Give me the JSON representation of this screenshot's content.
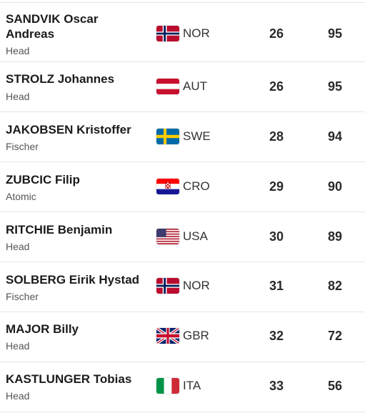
{
  "athletes": [
    {
      "name": "SANDVIK Oscar Andreas",
      "brand": "Head",
      "country": "NOR",
      "flag": "norway-flag-icon",
      "value1": "26",
      "value2": "95"
    },
    {
      "name": "STROLZ Johannes",
      "brand": "Head",
      "country": "AUT",
      "flag": "austria-flag-icon",
      "value1": "26",
      "value2": "95"
    },
    {
      "name": "JAKOBSEN Kristoffer",
      "brand": "Fischer",
      "country": "SWE",
      "flag": "sweden-flag-icon",
      "value1": "28",
      "value2": "94"
    },
    {
      "name": "ZUBCIC Filip",
      "brand": "Atomic",
      "country": "CRO",
      "flag": "croatia-flag-icon",
      "value1": "29",
      "value2": "90"
    },
    {
      "name": "RITCHIE Benjamin",
      "brand": "Head",
      "country": "USA",
      "flag": "usa-flag-icon",
      "value1": "30",
      "value2": "89"
    },
    {
      "name": "SOLBERG Eirik Hystad",
      "brand": "Fischer",
      "country": "NOR",
      "flag": "norway-flag-icon",
      "value1": "31",
      "value2": "82"
    },
    {
      "name": "MAJOR Billy",
      "brand": "Head",
      "country": "GBR",
      "flag": "uk-flag-icon",
      "value1": "32",
      "value2": "72"
    },
    {
      "name": "KASTLUNGER Tobias",
      "brand": "Head",
      "country": "ITA",
      "flag": "italy-flag-icon",
      "value1": "33",
      "value2": "56"
    }
  ]
}
